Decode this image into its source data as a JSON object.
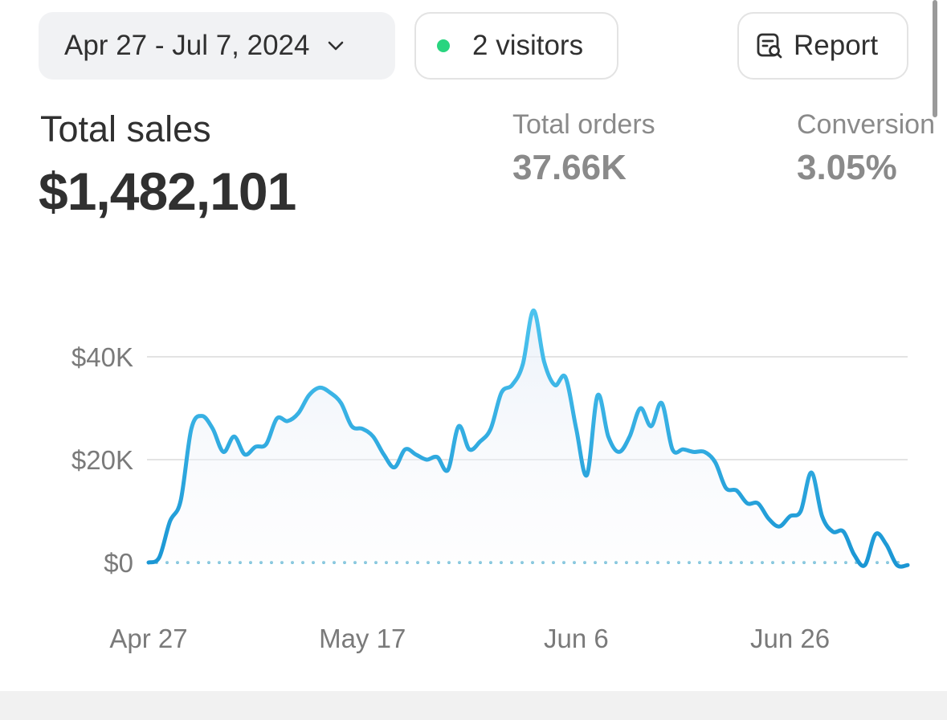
{
  "toolbar": {
    "date_range_label": "Apr 27 - Jul 7, 2024",
    "date_range_icon": "chevron-down-icon",
    "visitors_label": "2 visitors",
    "visitors_dot_color": "#29d57f",
    "report_label": "Report",
    "report_icon": "report-search-icon"
  },
  "metrics": {
    "total_sales": {
      "label": "Total sales",
      "value": "$1,482,101"
    },
    "total_orders": {
      "label": "Total orders",
      "value": "37.66K"
    },
    "conversion": {
      "label": "Conversion",
      "value": "3.05%"
    }
  },
  "chart_data": {
    "type": "area",
    "title": "",
    "xlabel": "",
    "ylabel": "",
    "ylim": [
      0,
      50000
    ],
    "ytick_values": [
      0,
      20000,
      40000
    ],
    "ytick_labels": [
      "$0",
      "$20K",
      "$40K"
    ],
    "xtick_labels": [
      "Apr 27",
      "May 17",
      "Jun 6",
      "Jun 26"
    ],
    "xtick_days": [
      0,
      20,
      40,
      60
    ],
    "grid": true,
    "line_color": "#29a9e0",
    "baseline_color": "#7fc4dc",
    "series": [
      {
        "x_start": "Apr 27, 2024",
        "values": [
          0,
          1000,
          8000,
          12000,
          26000,
          28500,
          26000,
          21500,
          24500,
          21000,
          22500,
          23000,
          28000,
          27500,
          29000,
          32500,
          34000,
          33000,
          31000,
          26500,
          26000,
          24500,
          21000,
          18500,
          22000,
          21000,
          20000,
          20500,
          18000,
          26500,
          22000,
          23500,
          26000,
          33000,
          34500,
          38500,
          49000,
          39000,
          34500,
          36000,
          26000,
          17000,
          32500,
          24500,
          21500,
          24500,
          30000,
          26500,
          31000,
          22000,
          22000,
          21500,
          21500,
          19500,
          14500,
          14000,
          11500,
          11500,
          8500,
          7000,
          9000,
          10000,
          17500,
          9000,
          6000,
          6000,
          1500,
          -500,
          5500,
          3500,
          -500,
          -500
        ]
      }
    ]
  }
}
